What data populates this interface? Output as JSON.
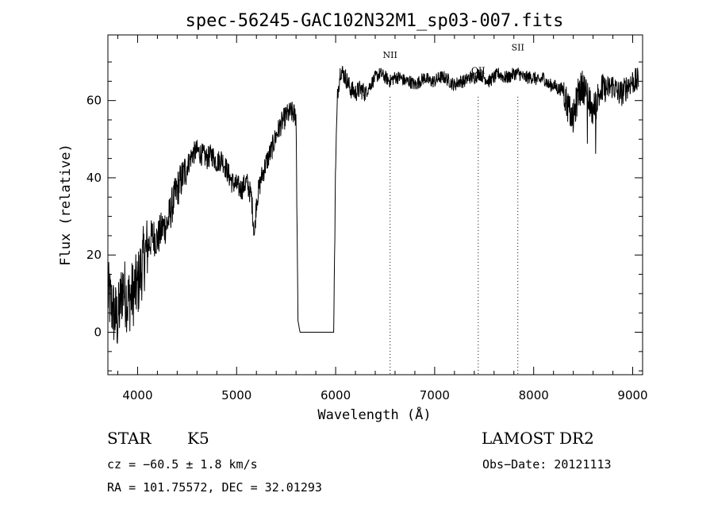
{
  "chart_data": {
    "type": "line",
    "title": "spec-56245-GAC102N32M1_sp03-007.fits",
    "xlabel": "Wavelength (Å)",
    "ylabel": "Flux (relative)",
    "xlim": [
      3700,
      9100
    ],
    "ylim": [
      -11,
      77
    ],
    "xticks": [
      4000,
      5000,
      6000,
      7000,
      8000,
      9000
    ],
    "yticks": [
      0,
      20,
      40,
      60
    ],
    "grid": false,
    "series": [
      {
        "x": [
          3700,
          3760,
          3800,
          3850,
          3900,
          3950,
          4000,
          4050,
          4100,
          4150,
          4200,
          4250,
          4300,
          4350,
          4400,
          4450,
          4500,
          4550,
          4600,
          4650,
          4700,
          4750,
          4800,
          4850,
          4900,
          4950,
          5000,
          5050,
          5100,
          5150,
          5180,
          5200,
          5250,
          5300,
          5350,
          5400,
          5450,
          5500,
          5550,
          5600,
          5620,
          5640,
          5700,
          5800,
          5900,
          5980,
          6000,
          6020,
          6050,
          6100,
          6150,
          6200,
          6250,
          6300,
          6350,
          6400,
          6450,
          6500,
          6550,
          6600,
          6650,
          6700,
          6750,
          6800,
          6850,
          6900,
          6950,
          7000,
          7050,
          7100,
          7150,
          7200,
          7250,
          7300,
          7350,
          7400,
          7450,
          7500,
          7550,
          7600,
          7650,
          7700,
          7750,
          7800,
          7850,
          7900,
          7950,
          8000,
          8050,
          8100,
          8150,
          8200,
          8250,
          8300,
          8350,
          8400,
          8450,
          8500,
          8550,
          8600,
          8650,
          8700,
          8750,
          8800,
          8850,
          8900,
          8950,
          9000,
          9050
        ],
        "values": [
          10,
          5,
          3,
          12,
          8,
          10,
          12,
          18,
          22,
          25,
          24,
          27,
          28,
          33,
          37,
          40,
          43,
          46,
          47,
          46,
          45,
          46,
          44,
          45,
          42,
          39,
          38,
          37,
          39,
          35,
          25,
          34,
          40,
          44,
          47,
          51,
          54,
          56,
          57,
          56,
          3,
          0,
          0,
          0,
          0,
          0,
          44,
          62,
          68,
          66,
          63,
          62,
          63,
          62,
          64,
          66,
          67,
          66,
          65,
          66,
          66,
          65,
          65,
          64,
          65,
          66,
          65,
          65,
          66,
          66,
          65,
          64,
          65,
          65,
          66,
          66,
          67,
          66,
          65,
          66,
          67,
          66,
          66,
          67,
          67,
          66,
          66,
          66,
          65,
          66,
          64,
          64,
          63,
          63,
          58,
          55,
          62,
          64,
          60,
          57,
          61,
          63,
          63,
          64,
          62,
          62,
          64,
          65,
          65
        ]
      }
    ],
    "annotations": [
      {
        "label": "NII",
        "x": 6550
      },
      {
        "label": "OII",
        "x": 7440
      },
      {
        "label": "SII",
        "x": 7840
      }
    ]
  },
  "info": {
    "object_type": "STAR",
    "subclass": "K5",
    "survey": "LAMOST DR2",
    "cz": "cz = −60.5 ± 1.8 km/s",
    "obs_date": "Obs−Date: 20121113",
    "coords": "RA = 101.75572, DEC =  32.01293"
  }
}
